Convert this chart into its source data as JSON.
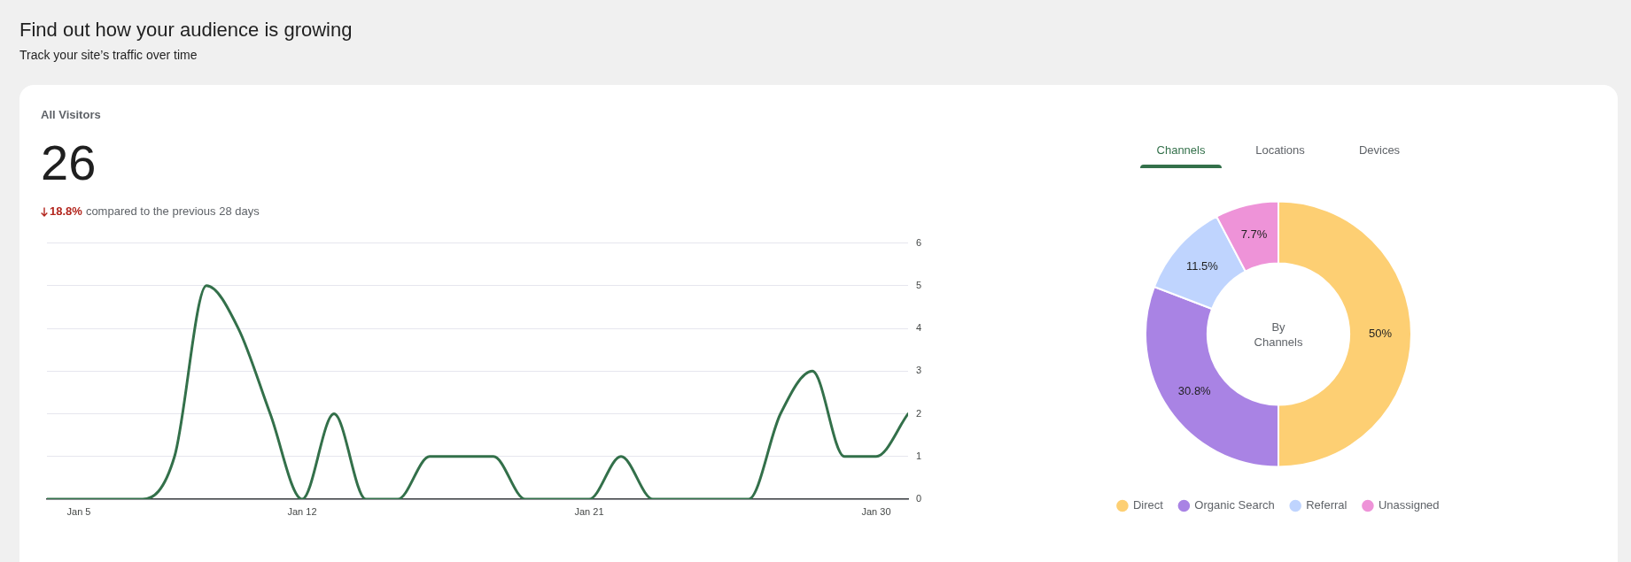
{
  "chart_data": [
    {
      "type": "other",
      "title": "Find out how your audience is growing",
      "subtitle": "Track your site’s traffic over time"
    },
    {
      "type": "line",
      "title": "All Visitors",
      "annotations": [
        "26",
        "18.8%",
        "compared to the previous 28 days"
      ],
      "x": [
        "--01-04",
        "--01-05",
        "--01-06",
        "--01-07",
        "--01-08",
        "--01-09",
        "--01-10",
        "--01-11",
        "--01-12",
        "--01-13",
        "--01-14",
        "--01-15",
        "--01-16",
        "--01-17",
        "--01-18",
        "--01-19",
        "--01-20",
        "--01-21",
        "--01-22",
        "--01-23",
        "--01-24",
        "--01-25",
        "--01-26",
        "--01-27",
        "--01-28",
        "--01-29",
        "--01-30",
        "--01-31"
      ],
      "values": [
        0,
        0,
        0,
        0,
        1,
        5,
        4,
        2,
        0,
        2,
        0,
        0,
        1,
        1,
        1,
        0,
        0,
        0,
        1,
        0,
        0,
        0,
        0,
        2,
        3,
        1,
        1,
        2
      ],
      "color": "#33704a",
      "xlim": [
        "--01-04",
        "--01-31"
      ],
      "xticks": [
        {
          "value": "--01-05",
          "label": "Jan 5"
        },
        {
          "value": "--01-12",
          "label": "Jan 12"
        },
        {
          "value": "--01-21",
          "label": "Jan 21"
        },
        {
          "value": "--01-30",
          "label": "Jan 30"
        }
      ],
      "ylim": [
        0,
        6
      ],
      "yticks": [
        0,
        1,
        2,
        3,
        4,
        5,
        6
      ],
      "grid": "y"
    },
    {
      "type": "donut",
      "title": "By Channels",
      "annotations": [
        "Channels",
        "Locations",
        "Devices"
      ],
      "categories": [
        "Direct",
        "Organic Search",
        "Referral",
        "Unassigned"
      ],
      "values": [
        50,
        30.8,
        11.5,
        7.7
      ],
      "colors": [
        "#fdcf73",
        "#a983e4",
        "#bfd4fe",
        "#ee93d8"
      ],
      "value_labels": [
        "50%",
        "30.8%",
        "11.5%",
        "7.7%"
      ],
      "legend": "bottom"
    }
  ]
}
